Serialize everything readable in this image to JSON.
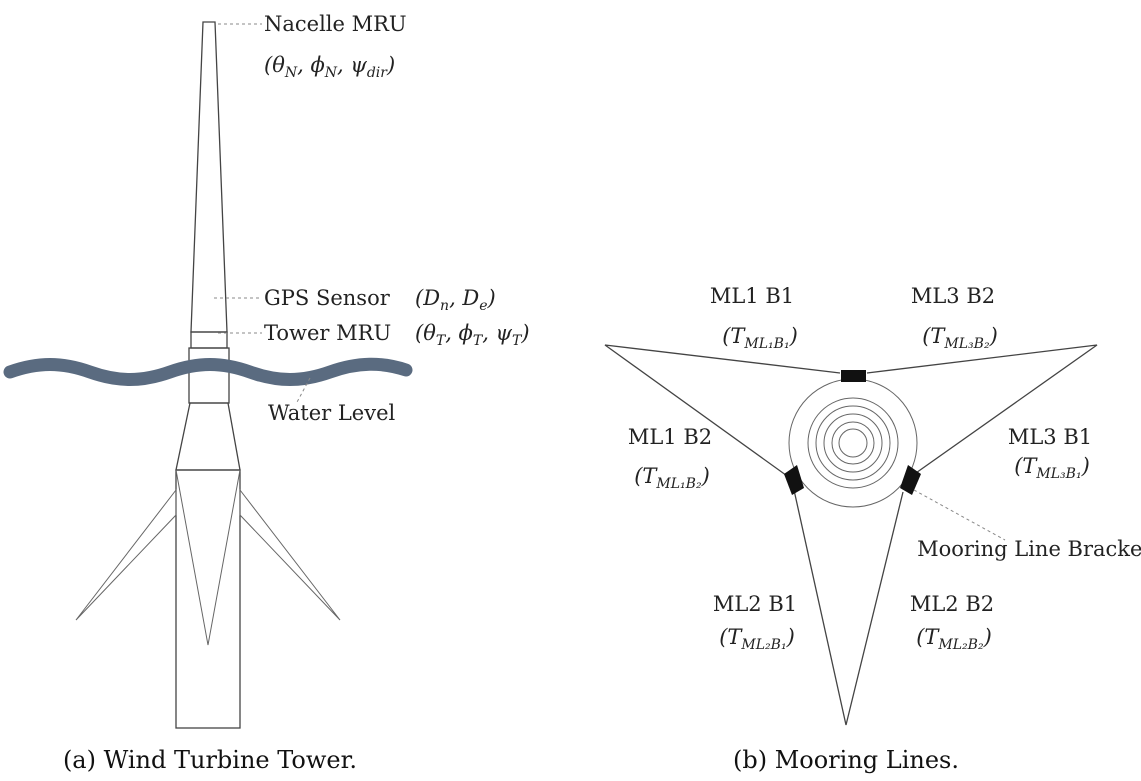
{
  "tower": {
    "labels": {
      "nacelle_mru": "Nacelle MRU",
      "gps_sensor": "GPS Sensor",
      "tower_mru": "Tower MRU",
      "water_level": "Water Level"
    },
    "math": {
      "nacelle": "(θN, ϕN, ψdir)",
      "gps": "(Dn, De)",
      "tower": "(θT, ϕT, ψT)"
    },
    "caption": "(a) Wind Turbine Tower.",
    "water_color": "#5a6b80"
  },
  "mooring": {
    "lines": [
      {
        "id": "ML1 B1",
        "tension": "(TML1B1)"
      },
      {
        "id": "ML3 B2",
        "tension": "(TML3B2)"
      },
      {
        "id": "ML1 B2",
        "tension": "(TML1B2)"
      },
      {
        "id": "ML3 B1",
        "tension": "(TML3B1)"
      },
      {
        "id": "ML2 B1",
        "tension": "(TML2B1)"
      },
      {
        "id": "ML2 B2",
        "tension": "(TML2B2)"
      }
    ],
    "bracket_label": "Mooring Line Bracket",
    "caption": "(b) Mooring Lines."
  }
}
